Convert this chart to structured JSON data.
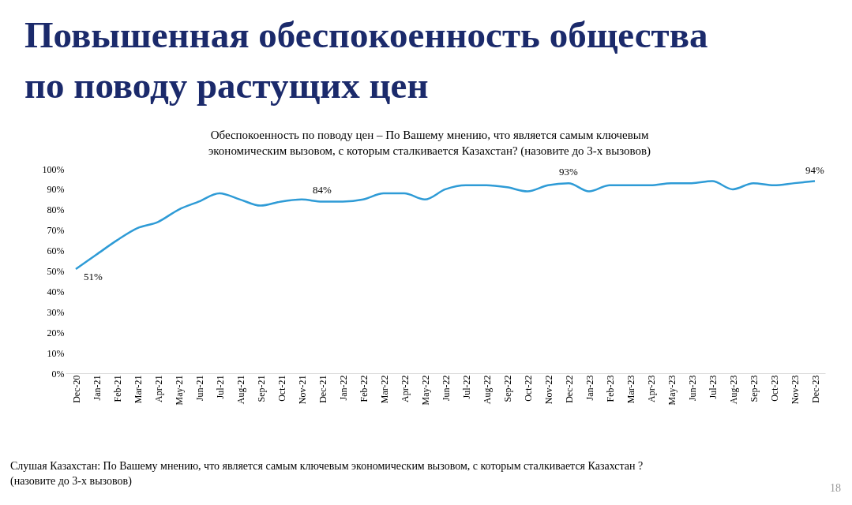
{
  "chart_data": {
    "type": "line",
    "title": "Повышенная обеспокоенность общества\nпо поводу растущих цен",
    "subtitle": "Обеспокоенность по поводу цен – По Вашему мнению, что является самым ключевым\nэкономическим вызовом, с которым сталкивается Казахстан? (назовите до 3-х вызовов)",
    "annotations": [
      "Слушая Казахстан: По Вашему мнению, что является самым ключевым экономическим вызовом, с которым сталкивается Казахстан ?\n(назовите до 3-х вызовов)",
      "18"
    ],
    "categories": [
      "Dec-20",
      "Jan-21",
      "Feb-21",
      "Mar-21",
      "Apr-21",
      "May-21",
      "Jun-21",
      "Jul-21",
      "Aug-21",
      "Sep-21",
      "Oct-21",
      "Nov-21",
      "Dec-21",
      "Jan-22",
      "Feb-22",
      "Mar-22",
      "Apr-22",
      "May-22",
      "Jun-22",
      "Jul-22",
      "Aug-22",
      "Sep-22",
      "Oct-22",
      "Nov-22",
      "Dec-22",
      "Jan-23",
      "Feb-23",
      "Mar-23",
      "Apr-23",
      "May-23",
      "Jun-23",
      "Jul-23",
      "Aug-23",
      "Sep-23",
      "Oct-23",
      "Nov-23",
      "Dec-23"
    ],
    "series": [
      {
        "color": "#2e9bd6",
        "values": [
          51,
          58,
          65,
          71,
          74,
          80,
          84,
          88,
          85,
          82,
          84,
          85,
          84,
          84,
          85,
          88,
          88,
          85,
          90,
          92,
          92,
          91,
          89,
          92,
          93,
          89,
          92,
          92,
          92,
          93,
          93,
          94,
          90,
          93,
          92,
          93,
          94
        ],
        "value_labels": [
          "51%",
          null,
          null,
          null,
          null,
          null,
          null,
          null,
          null,
          null,
          null,
          null,
          "84%",
          null,
          null,
          null,
          null,
          null,
          null,
          null,
          null,
          null,
          null,
          null,
          "93%",
          null,
          null,
          null,
          null,
          null,
          null,
          null,
          null,
          null,
          null,
          null,
          "94%"
        ]
      }
    ],
    "ylim": [
      0,
      100
    ],
    "yticks": [
      {
        "value": 0,
        "label": "0%"
      },
      {
        "value": 10,
        "label": "10%"
      },
      {
        "value": 20,
        "label": "20%"
      },
      {
        "value": 30,
        "label": "30%"
      },
      {
        "value": 40,
        "label": "40%"
      },
      {
        "value": 50,
        "label": "50%"
      },
      {
        "value": 60,
        "label": "60%"
      },
      {
        "value": 70,
        "label": "70%"
      },
      {
        "value": 80,
        "label": "80%"
      },
      {
        "value": 90,
        "label": "90%"
      },
      {
        "value": 100,
        "label": "100%"
      }
    ],
    "grid": false,
    "marker": "none",
    "line_style": "solid"
  }
}
